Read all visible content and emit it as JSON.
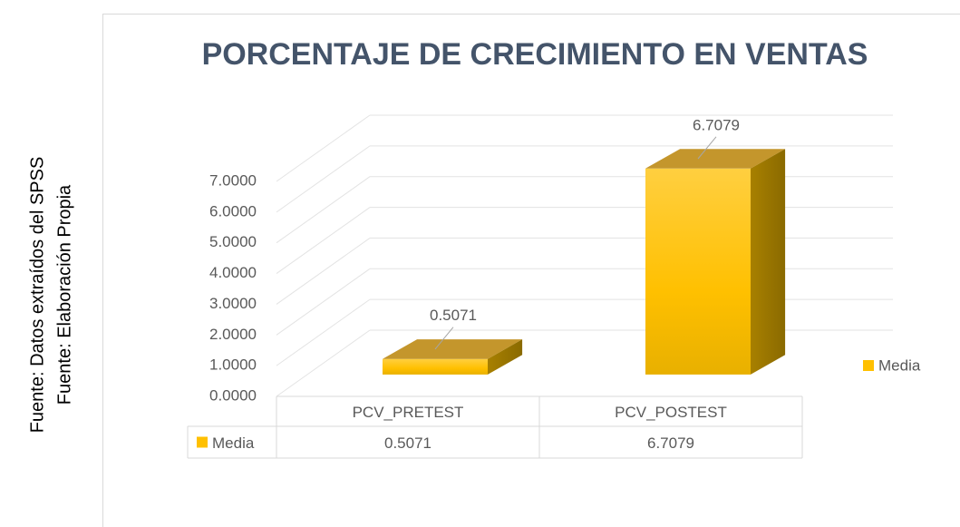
{
  "chart_data": {
    "type": "bar3d",
    "title": "PORCENTAJE DE CRECIMIENTO EN VENTAS",
    "side_notes": [
      "Fuente: Datos extraídos del SPSS",
      "Fuente: Elaboración Propia"
    ],
    "categories": [
      "PCV_PRETEST",
      "PCV_POSTEST"
    ],
    "series": [
      {
        "name": "Media",
        "color": "#ffc000",
        "values": [
          0.5071,
          6.7079
        ]
      }
    ],
    "ylim": [
      0,
      7
    ],
    "yticks": [
      {
        "value": 0,
        "label": "0.0000"
      },
      {
        "value": 1,
        "label": "1.0000"
      },
      {
        "value": 2,
        "label": "2.0000"
      },
      {
        "value": 3,
        "label": "3.0000"
      },
      {
        "value": 4,
        "label": "4.0000"
      },
      {
        "value": 5,
        "label": "5.0000"
      },
      {
        "value": 6,
        "label": "6.0000"
      },
      {
        "value": 7,
        "label": "7.0000"
      }
    ],
    "grid": true,
    "legend": "right",
    "data_table": true
  }
}
